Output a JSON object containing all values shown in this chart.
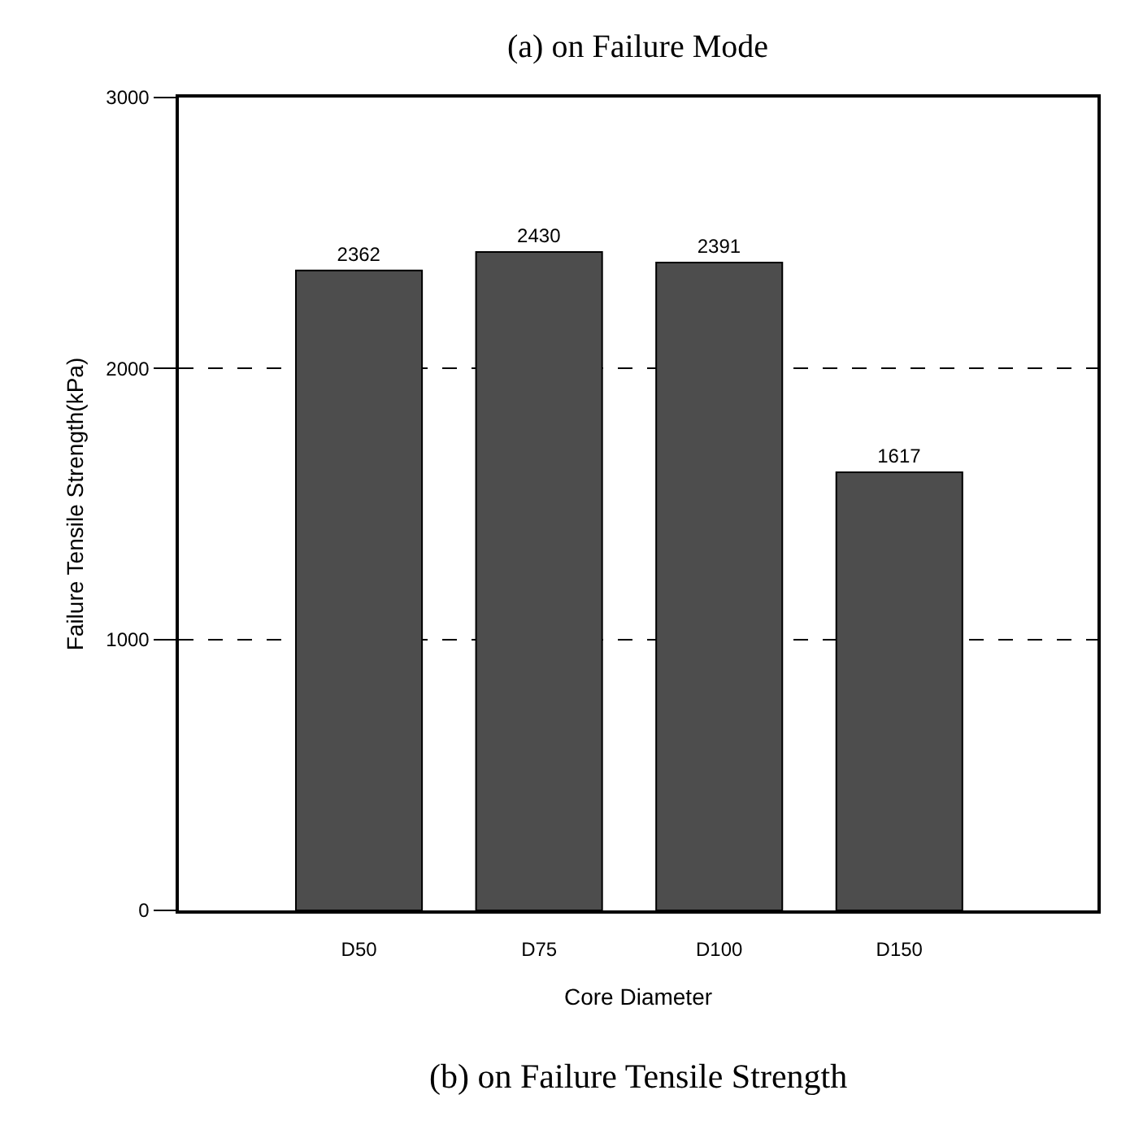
{
  "chart_data": {
    "type": "bar",
    "title": "(b) on Failure Tensile Strength",
    "annotations": [
      "(a) on Failure Mode"
    ],
    "xlabel": "Core Diameter",
    "ylabel": "Failure Tensile Strength(kPa)",
    "categories": [
      "D50",
      "D75",
      "D100",
      "D150"
    ],
    "values": [
      2362,
      2430,
      2391,
      1617
    ],
    "color": "#4d4d4d",
    "ylim": [
      0,
      3000
    ],
    "yticks": [
      0,
      1000,
      2000,
      3000
    ],
    "grid": "y",
    "data_labels": true
  }
}
